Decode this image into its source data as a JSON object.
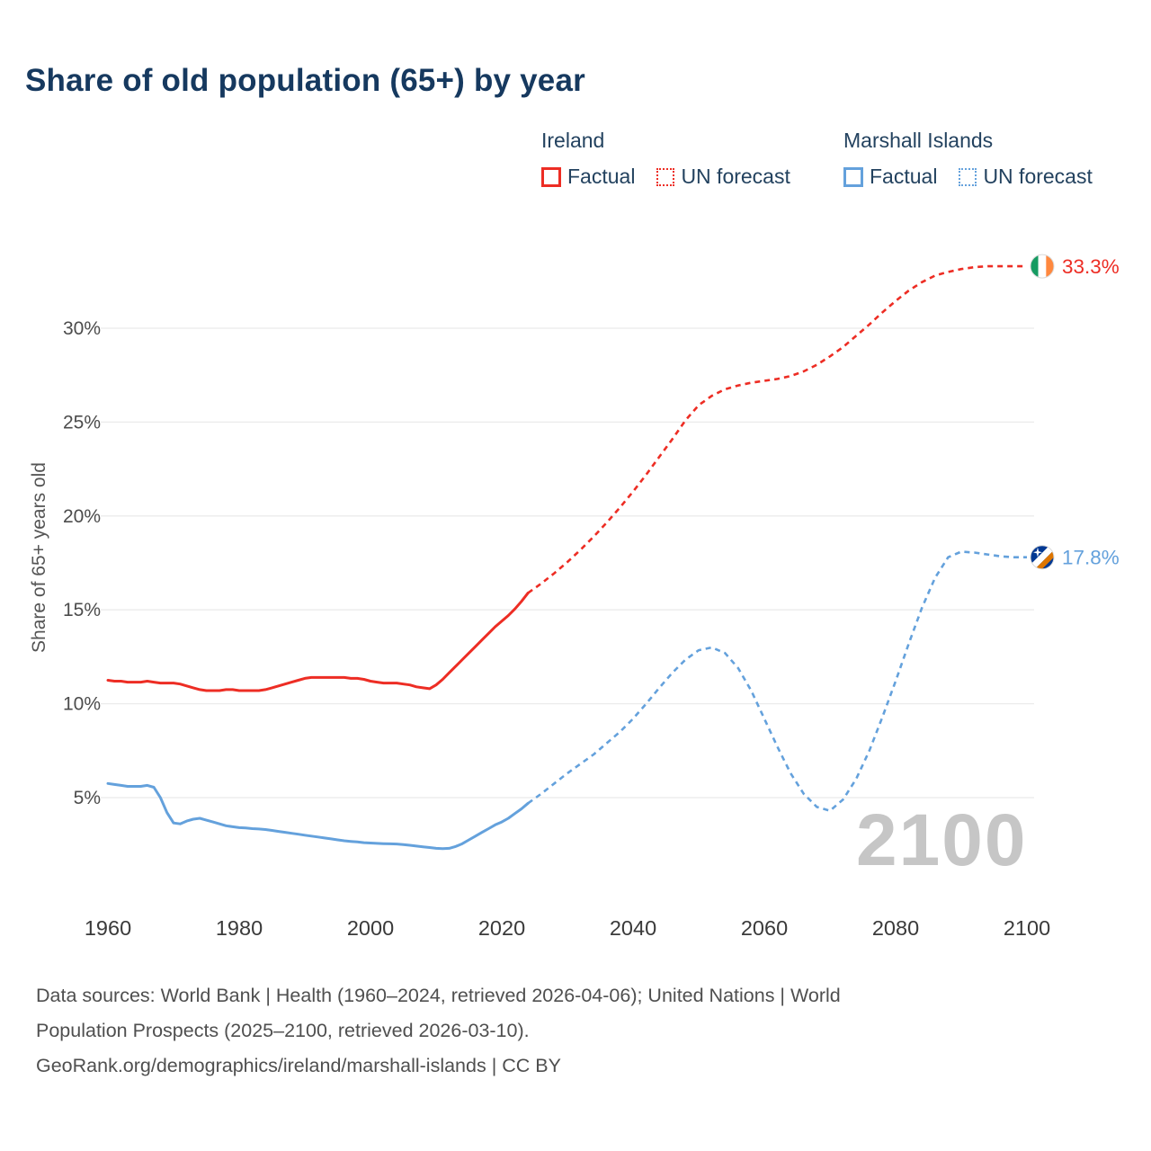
{
  "title": "Share of old population (65+) by year",
  "y_axis_label": "Share of 65+ years old",
  "watermark": "2100",
  "legend": {
    "groups": [
      {
        "name": "Ireland",
        "color": "#ed2d24",
        "items": [
          {
            "label": "Factual",
            "style": "solid"
          },
          {
            "label": "UN forecast",
            "style": "dashed"
          }
        ]
      },
      {
        "name": "Marshall Islands",
        "color": "#64a1dc",
        "items": [
          {
            "label": "Factual",
            "style": "solid"
          },
          {
            "label": "UN forecast",
            "style": "dashed"
          }
        ]
      }
    ]
  },
  "footer": {
    "line1": "Data sources: World Bank | Health (1960–2024, retrieved 2026-04-06); United Nations | World",
    "line2": "Population Prospects (2025–2100, retrieved 2026-03-10).",
    "line3": "GeoRank.org/demographics/ireland/marshall-islands | CC BY"
  },
  "chart_data": {
    "type": "line",
    "title": "Share of old population (65+) by year",
    "xlabel": "",
    "ylabel": "Share of 65+ years old",
    "x_ticks": [
      1960,
      1980,
      2000,
      2020,
      2040,
      2060,
      2080,
      2100
    ],
    "y_ticks": [
      {
        "value": 5,
        "label": "5%"
      },
      {
        "value": 10,
        "label": "10%"
      },
      {
        "value": 15,
        "label": "15%"
      },
      {
        "value": 20,
        "label": "20%"
      },
      {
        "value": 25,
        "label": "25%"
      },
      {
        "value": 30,
        "label": "30%"
      }
    ],
    "xlim": [
      1960,
      2100
    ],
    "grid": "horizontal",
    "legend_position": "top-right",
    "series": [
      {
        "name": "Ireland",
        "color": "#ed2d24",
        "flag": "ireland",
        "end_value": 33.3,
        "end_label": "33.3%",
        "factual": [
          [
            1960,
            11.25
          ],
          [
            1961,
            11.2
          ],
          [
            1962,
            11.2
          ],
          [
            1963,
            11.15
          ],
          [
            1964,
            11.15
          ],
          [
            1965,
            11.15
          ],
          [
            1966,
            11.2
          ],
          [
            1967,
            11.15
          ],
          [
            1968,
            11.1
          ],
          [
            1969,
            11.1
          ],
          [
            1970,
            11.1
          ],
          [
            1971,
            11.05
          ],
          [
            1972,
            10.95
          ],
          [
            1973,
            10.85
          ],
          [
            1974,
            10.75
          ],
          [
            1975,
            10.7
          ],
          [
            1976,
            10.7
          ],
          [
            1977,
            10.7
          ],
          [
            1978,
            10.75
          ],
          [
            1979,
            10.75
          ],
          [
            1980,
            10.7
          ],
          [
            1981,
            10.7
          ],
          [
            1982,
            10.7
          ],
          [
            1983,
            10.7
          ],
          [
            1984,
            10.75
          ],
          [
            1985,
            10.85
          ],
          [
            1986,
            10.95
          ],
          [
            1987,
            11.05
          ],
          [
            1988,
            11.15
          ],
          [
            1989,
            11.25
          ],
          [
            1990,
            11.35
          ],
          [
            1991,
            11.4
          ],
          [
            1992,
            11.4
          ],
          [
            1993,
            11.4
          ],
          [
            1994,
            11.4
          ],
          [
            1995,
            11.4
          ],
          [
            1996,
            11.4
          ],
          [
            1997,
            11.35
          ],
          [
            1998,
            11.35
          ],
          [
            1999,
            11.3
          ],
          [
            2000,
            11.2
          ],
          [
            2001,
            11.15
          ],
          [
            2002,
            11.1
          ],
          [
            2003,
            11.1
          ],
          [
            2004,
            11.1
          ],
          [
            2005,
            11.05
          ],
          [
            2006,
            11.0
          ],
          [
            2007,
            10.9
          ],
          [
            2008,
            10.85
          ],
          [
            2009,
            10.8
          ],
          [
            2010,
            11.0
          ],
          [
            2011,
            11.3
          ],
          [
            2012,
            11.65
          ],
          [
            2013,
            12.0
          ],
          [
            2014,
            12.35
          ],
          [
            2015,
            12.7
          ],
          [
            2016,
            13.05
          ],
          [
            2017,
            13.4
          ],
          [
            2018,
            13.75
          ],
          [
            2019,
            14.1
          ],
          [
            2020,
            14.4
          ],
          [
            2021,
            14.7
          ],
          [
            2022,
            15.05
          ],
          [
            2023,
            15.45
          ],
          [
            2024,
            15.9
          ]
        ],
        "forecast": [
          [
            2024,
            15.9
          ],
          [
            2026,
            16.4
          ],
          [
            2028,
            16.95
          ],
          [
            2030,
            17.55
          ],
          [
            2032,
            18.2
          ],
          [
            2034,
            18.9
          ],
          [
            2036,
            19.65
          ],
          [
            2038,
            20.45
          ],
          [
            2040,
            21.3
          ],
          [
            2042,
            22.2
          ],
          [
            2044,
            23.15
          ],
          [
            2046,
            24.1
          ],
          [
            2048,
            25.1
          ],
          [
            2050,
            25.9
          ],
          [
            2052,
            26.4
          ],
          [
            2054,
            26.75
          ],
          [
            2056,
            26.95
          ],
          [
            2058,
            27.1
          ],
          [
            2060,
            27.2
          ],
          [
            2062,
            27.3
          ],
          [
            2064,
            27.45
          ],
          [
            2066,
            27.7
          ],
          [
            2068,
            28.05
          ],
          [
            2070,
            28.5
          ],
          [
            2072,
            29.0
          ],
          [
            2074,
            29.6
          ],
          [
            2076,
            30.2
          ],
          [
            2078,
            30.85
          ],
          [
            2080,
            31.45
          ],
          [
            2082,
            32.0
          ],
          [
            2084,
            32.45
          ],
          [
            2086,
            32.8
          ],
          [
            2088,
            33.0
          ],
          [
            2090,
            33.15
          ],
          [
            2092,
            33.25
          ],
          [
            2094,
            33.3
          ],
          [
            2096,
            33.3
          ],
          [
            2098,
            33.3
          ],
          [
            2100,
            33.3
          ]
        ]
      },
      {
        "name": "Marshall Islands",
        "color": "#64a1dc",
        "flag": "marshall-islands",
        "end_value": 17.8,
        "end_label": "17.8%",
        "factual": [
          [
            1960,
            5.75
          ],
          [
            1961,
            5.7
          ],
          [
            1962,
            5.65
          ],
          [
            1963,
            5.6
          ],
          [
            1964,
            5.6
          ],
          [
            1965,
            5.6
          ],
          [
            1966,
            5.65
          ],
          [
            1967,
            5.55
          ],
          [
            1968,
            5.0
          ],
          [
            1969,
            4.2
          ],
          [
            1970,
            3.65
          ],
          [
            1971,
            3.6
          ],
          [
            1972,
            3.75
          ],
          [
            1973,
            3.85
          ],
          [
            1974,
            3.9
          ],
          [
            1975,
            3.8
          ],
          [
            1976,
            3.7
          ],
          [
            1977,
            3.6
          ],
          [
            1978,
            3.5
          ],
          [
            1979,
            3.45
          ],
          [
            1980,
            3.4
          ],
          [
            1981,
            3.38
          ],
          [
            1982,
            3.35
          ],
          [
            1983,
            3.33
          ],
          [
            1984,
            3.3
          ],
          [
            1985,
            3.25
          ],
          [
            1986,
            3.2
          ],
          [
            1987,
            3.15
          ],
          [
            1988,
            3.1
          ],
          [
            1989,
            3.05
          ],
          [
            1990,
            3.0
          ],
          [
            1991,
            2.95
          ],
          [
            1992,
            2.9
          ],
          [
            1993,
            2.85
          ],
          [
            1994,
            2.8
          ],
          [
            1995,
            2.75
          ],
          [
            1996,
            2.7
          ],
          [
            1997,
            2.67
          ],
          [
            1998,
            2.64
          ],
          [
            1999,
            2.6
          ],
          [
            2000,
            2.58
          ],
          [
            2001,
            2.56
          ],
          [
            2002,
            2.55
          ],
          [
            2003,
            2.54
          ],
          [
            2004,
            2.53
          ],
          [
            2005,
            2.5
          ],
          [
            2006,
            2.46
          ],
          [
            2007,
            2.42
          ],
          [
            2008,
            2.38
          ],
          [
            2009,
            2.34
          ],
          [
            2010,
            2.3
          ],
          [
            2011,
            2.28
          ],
          [
            2012,
            2.3
          ],
          [
            2013,
            2.4
          ],
          [
            2014,
            2.55
          ],
          [
            2015,
            2.75
          ],
          [
            2016,
            2.95
          ],
          [
            2017,
            3.15
          ],
          [
            2018,
            3.35
          ],
          [
            2019,
            3.55
          ],
          [
            2020,
            3.7
          ],
          [
            2021,
            3.9
          ],
          [
            2022,
            4.15
          ],
          [
            2023,
            4.4
          ],
          [
            2024,
            4.7
          ]
        ],
        "forecast": [
          [
            2024,
            4.7
          ],
          [
            2026,
            5.2
          ],
          [
            2028,
            5.75
          ],
          [
            2030,
            6.3
          ],
          [
            2032,
            6.8
          ],
          [
            2034,
            7.3
          ],
          [
            2036,
            7.9
          ],
          [
            2038,
            8.5
          ],
          [
            2040,
            9.2
          ],
          [
            2042,
            10.0
          ],
          [
            2044,
            10.85
          ],
          [
            2046,
            11.65
          ],
          [
            2048,
            12.35
          ],
          [
            2050,
            12.85
          ],
          [
            2052,
            13.0
          ],
          [
            2054,
            12.7
          ],
          [
            2056,
            11.9
          ],
          [
            2058,
            10.7
          ],
          [
            2060,
            9.2
          ],
          [
            2062,
            7.7
          ],
          [
            2064,
            6.3
          ],
          [
            2066,
            5.2
          ],
          [
            2068,
            4.5
          ],
          [
            2070,
            4.3
          ],
          [
            2072,
            4.9
          ],
          [
            2074,
            6.0
          ],
          [
            2076,
            7.5
          ],
          [
            2078,
            9.3
          ],
          [
            2080,
            11.2
          ],
          [
            2082,
            13.2
          ],
          [
            2084,
            15.1
          ],
          [
            2086,
            16.7
          ],
          [
            2088,
            17.8
          ],
          [
            2090,
            18.1
          ],
          [
            2092,
            18.05
          ],
          [
            2094,
            17.95
          ],
          [
            2096,
            17.85
          ],
          [
            2098,
            17.8
          ],
          [
            2100,
            17.8
          ]
        ]
      }
    ]
  }
}
